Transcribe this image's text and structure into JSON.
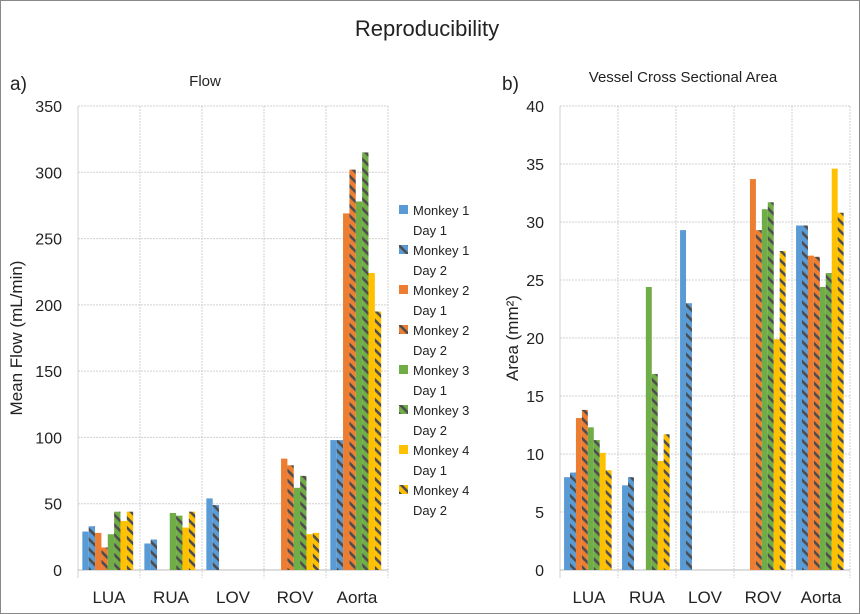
{
  "title": "Reproducibility",
  "colors": {
    "m1": "#5b9bd5",
    "m2": "#ed7d31",
    "m3": "#70ad47",
    "m4": "#ffc000",
    "hatch": "#4d4d4d"
  },
  "legend": [
    {
      "line1": "Monkey 1",
      "line2": "Day 1",
      "color": "#5b9bd5",
      "hatched": false
    },
    {
      "line1": "Monkey 1",
      "line2": "Day 2",
      "color": "#5b9bd5",
      "hatched": true
    },
    {
      "line1": "Monkey 2",
      "line2": "Day 1",
      "color": "#ed7d31",
      "hatched": false
    },
    {
      "line1": "Monkey 2",
      "line2": "Day 2",
      "color": "#ed7d31",
      "hatched": true
    },
    {
      "line1": "Monkey 3",
      "line2": "Day 1",
      "color": "#70ad47",
      "hatched": false
    },
    {
      "line1": "Monkey 3",
      "line2": "Day 2",
      "color": "#70ad47",
      "hatched": true
    },
    {
      "line1": "Monkey 4",
      "line2": "Day 1",
      "color": "#ffc000",
      "hatched": false
    },
    {
      "line1": "Monkey 4",
      "line2": "Day 2",
      "color": "#ffc000",
      "hatched": true
    }
  ],
  "chart_data": [
    {
      "type": "bar",
      "panel": "a)",
      "title": "Flow",
      "xlabel": "",
      "ylabel": "Mean Flow (mL/min)",
      "ylim": [
        0,
        350
      ],
      "yticks": [
        0,
        50,
        100,
        150,
        200,
        250,
        300,
        350
      ],
      "grid": true,
      "categories": [
        "LUA",
        "RUA",
        "LOV",
        "ROV",
        "Aorta"
      ],
      "series": [
        {
          "name": "Monkey 1 Day 1",
          "values": [
            29,
            20,
            54,
            null,
            98
          ]
        },
        {
          "name": "Monkey 1 Day 2",
          "values": [
            33,
            23,
            49,
            null,
            98
          ]
        },
        {
          "name": "Monkey 2 Day 1",
          "values": [
            28,
            null,
            null,
            84,
            269
          ]
        },
        {
          "name": "Monkey 2 Day 2",
          "values": [
            17,
            null,
            null,
            79,
            302
          ]
        },
        {
          "name": "Monkey 3 Day 1",
          "values": [
            27,
            43,
            null,
            62,
            278
          ]
        },
        {
          "name": "Monkey 3 Day 2",
          "values": [
            44,
            41,
            null,
            71,
            315
          ]
        },
        {
          "name": "Monkey 4 Day 1",
          "values": [
            37,
            32,
            null,
            27,
            224
          ]
        },
        {
          "name": "Monkey 4 Day 2",
          "values": [
            44,
            44,
            null,
            28,
            195
          ]
        }
      ]
    },
    {
      "type": "bar",
      "panel": "b)",
      "title": "Vessel Cross Sectional Area",
      "xlabel": "",
      "ylabel": "Area (mm²)",
      "ylim": [
        0,
        40
      ],
      "yticks": [
        0,
        5,
        10,
        15,
        20,
        25,
        30,
        35,
        40
      ],
      "grid": true,
      "categories": [
        "LUA",
        "RUA",
        "LOV",
        "ROV",
        "Aorta"
      ],
      "series": [
        {
          "name": "Monkey 1 Day 1",
          "values": [
            8.0,
            7.3,
            29.3,
            null,
            29.7
          ]
        },
        {
          "name": "Monkey 1 Day 2",
          "values": [
            8.4,
            8.0,
            23.0,
            null,
            29.7
          ]
        },
        {
          "name": "Monkey 2 Day 1",
          "values": [
            13.1,
            null,
            null,
            33.7,
            27.1
          ]
        },
        {
          "name": "Monkey 2 Day 2",
          "values": [
            13.8,
            null,
            null,
            29.3,
            27.0
          ]
        },
        {
          "name": "Monkey 3 Day 1",
          "values": [
            12.3,
            24.4,
            null,
            31.1,
            24.4
          ]
        },
        {
          "name": "Monkey 3 Day 2",
          "values": [
            11.2,
            16.9,
            null,
            31.7,
            25.6
          ]
        },
        {
          "name": "Monkey 4 Day 1",
          "values": [
            10.1,
            9.4,
            null,
            19.9,
            34.6
          ]
        },
        {
          "name": "Monkey 4 Day 2",
          "values": [
            8.6,
            11.7,
            null,
            27.5,
            30.8
          ]
        }
      ]
    }
  ]
}
